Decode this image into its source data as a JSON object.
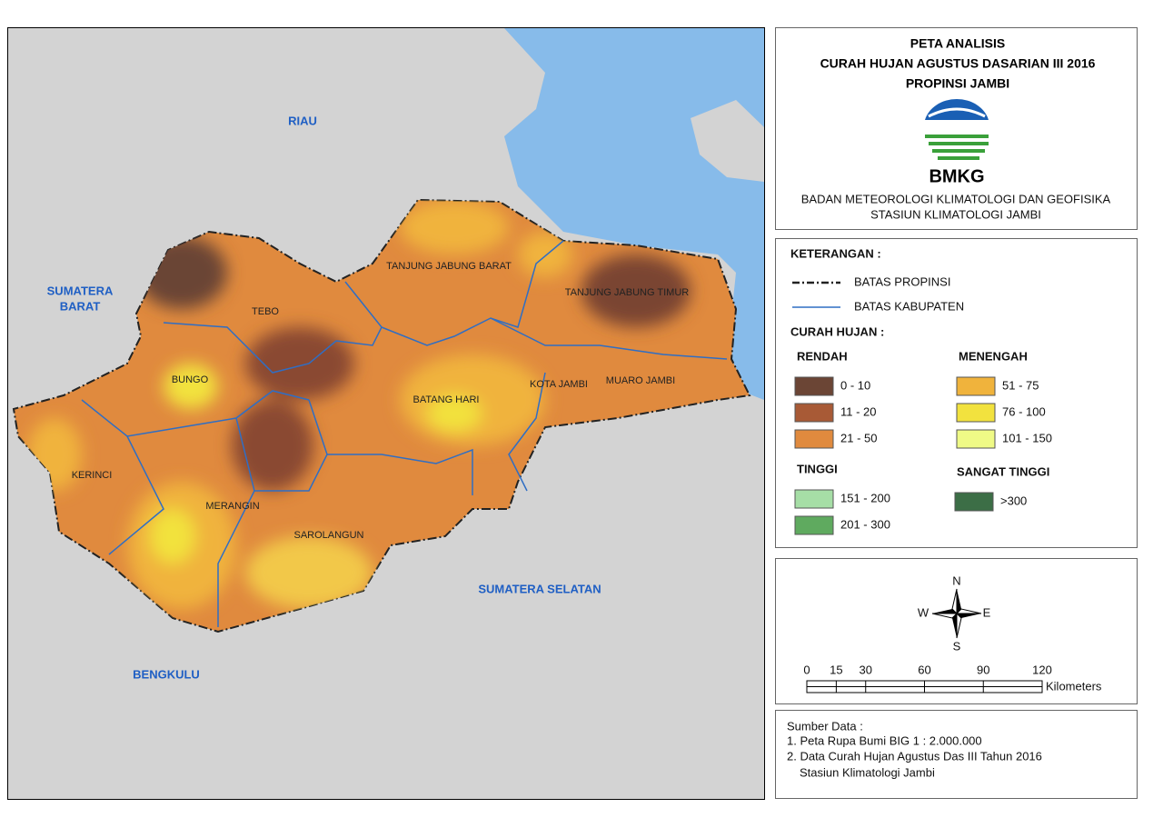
{
  "map": {
    "neighbors": {
      "riau": "RIAU",
      "sumbar": [
        "SUMATERA",
        "BARAT"
      ],
      "sumsel": "SUMATERA SELATAN",
      "bengkulu": "BENGKULU"
    },
    "regencies": [
      "TEBO",
      "TANJUNG JABUNG BARAT",
      "TANJUNG JABUNG TIMUR",
      "BUNGO",
      "BATANG HARI",
      "KOTA JAMBI",
      "MUARO JAMBI",
      "KERINCI",
      "MERANGIN",
      "SAROLANGUN"
    ]
  },
  "header": {
    "title_lines": [
      "PETA ANALISIS",
      "CURAH HUJAN AGUSTUS DASARIAN III 2016",
      "PROPINSI JAMBI"
    ],
    "logo_text": "BMKG",
    "agency_lines": [
      "BADAN METEOROLOGI KLIMATOLOGI DAN GEOFISIKA",
      "STASIUN KLIMATOLOGI JAMBI"
    ]
  },
  "legend": {
    "title": "KETERANGAN :",
    "lines": [
      "BATAS PROPINSI",
      "BATAS KABUPATEN"
    ],
    "rain_title": "CURAH HUJAN :",
    "groups": [
      {
        "name": "RENDAH",
        "classes": [
          {
            "label": "0 - 10",
            "color": "#6b4535"
          },
          {
            "label": "11 - 20",
            "color": "#a85a36"
          },
          {
            "label": "21 - 50",
            "color": "#e08a3e"
          }
        ]
      },
      {
        "name": "MENENGAH",
        "classes": [
          {
            "label": "51 - 75",
            "color": "#f0b33c"
          },
          {
            "label": "76 - 100",
            "color": "#f2e23e"
          },
          {
            "label": "101 - 150",
            "color": "#effa86"
          }
        ]
      },
      {
        "name": "TINGGI",
        "classes": [
          {
            "label": "151 - 200",
            "color": "#a6dea6"
          },
          {
            "label": "201 - 300",
            "color": "#5faa5f"
          }
        ]
      },
      {
        "name": "SANGAT TINGGI",
        "classes": [
          {
            "label": ">300",
            "color": "#3c6e46"
          }
        ]
      }
    ]
  },
  "compass": {
    "n": "N",
    "e": "E",
    "s": "S",
    "w": "W"
  },
  "scale": {
    "ticks": [
      0,
      15,
      30,
      60,
      90,
      120
    ],
    "unit": "Kilometers"
  },
  "source": {
    "title": "Sumber Data :",
    "lines": [
      "1. Peta Rupa Bumi BIG 1 : 2.000.000",
      "2. Data Curah Hujan Agustus Das III Tahun 2016",
      "Stasiun Klimatologi Jambi"
    ]
  }
}
